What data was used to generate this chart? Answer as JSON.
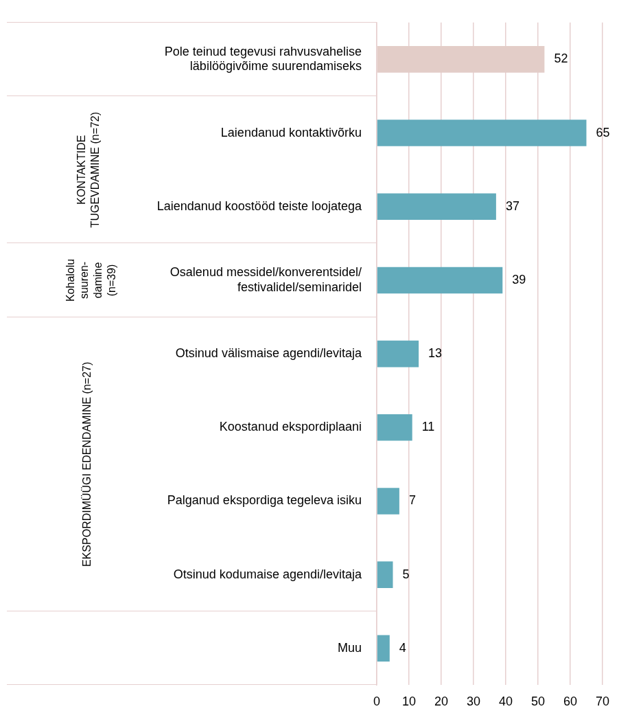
{
  "chart_data": {
    "type": "bar",
    "orientation": "horizontal",
    "categories": [
      "Pole teinud tegevusi rahvusvahelise läbilöögivõime suurendamiseks",
      "Laiendanud kontaktivõrku",
      "Laiendanud koostööd teiste loojatega",
      "Osalenud messidel/konverentsidel/ festivalidel/seminaridel",
      "Otsinud välismaise agendi/levitaja",
      "Koostanud ekspordiplaani",
      "Palganud ekspordiga tegeleva isiku",
      "Otsinud kodumaise agendi/levitaja",
      "Muu"
    ],
    "values": [
      52,
      65,
      37,
      39,
      13,
      11,
      7,
      5,
      4
    ],
    "colors": [
      "#e3cdc8",
      "#62abbb",
      "#62abbb",
      "#62abbb",
      "#62abbb",
      "#62abbb",
      "#62abbb",
      "#62abbb",
      "#62abbb"
    ],
    "xlim": [
      0,
      70
    ],
    "xticks": [
      0,
      10,
      20,
      30,
      40,
      50,
      60,
      70
    ],
    "grid": "x",
    "data_labels": true,
    "annotations": [
      "KONTAKTIDE TUGEVDAMINE (n=72)",
      "Kohalolu suuren-damine (n=39)",
      "EKSPORDIMÜÜGI EDENDAMINE (n=27)"
    ]
  }
}
